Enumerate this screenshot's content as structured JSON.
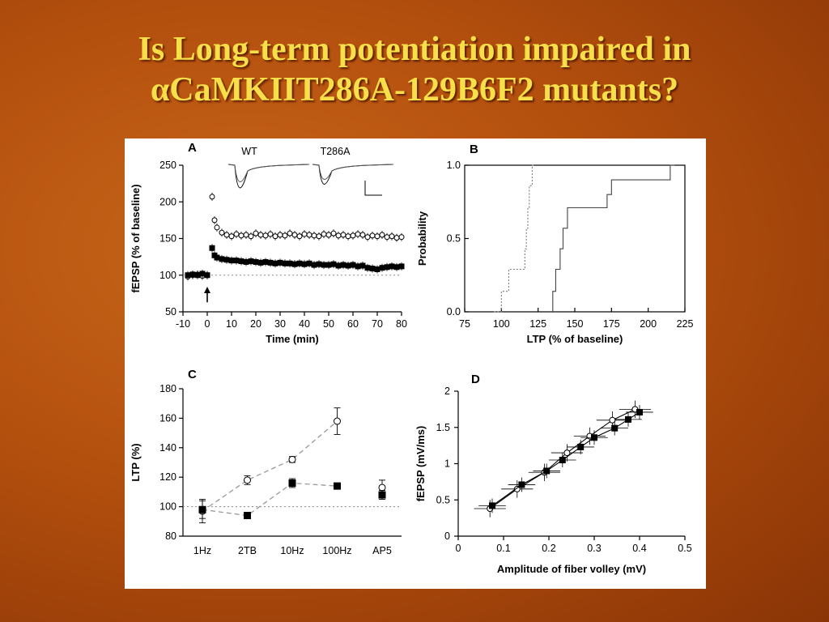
{
  "slide": {
    "title_line1": "Is Long-term potentiation impaired in",
    "title_line2": "αCaMKIIT286A-129B6F2 mutants?"
  },
  "colors": {
    "title": "#f7df4a",
    "background": "#b4500e"
  },
  "chart_data": [
    {
      "panel": "A",
      "type": "scatter",
      "xlabel": "Time (min)",
      "ylabel": "fEPSP (% of baseline)",
      "xlim": [
        -10,
        80
      ],
      "ylim": [
        50,
        250
      ],
      "xticks": [
        "-10",
        "0",
        "10",
        "20",
        "30",
        "40",
        "50",
        "60",
        "70",
        "80"
      ],
      "yticks": [
        "50",
        "100",
        "150",
        "200",
        "250"
      ],
      "reference_line_y": 100,
      "inset_labels": [
        "WT",
        "T286A"
      ],
      "series": [
        {
          "marker": "open circle",
          "x": [
            -8,
            -6,
            -4,
            -2,
            0,
            2,
            3,
            4,
            6,
            8,
            10,
            12,
            14,
            16,
            18,
            20,
            22,
            24,
            26,
            28,
            30,
            32,
            34,
            36,
            38,
            40,
            42,
            44,
            46,
            48,
            50,
            52,
            54,
            56,
            58,
            60,
            62,
            64,
            66,
            68,
            70,
            72,
            74,
            76,
            78,
            80
          ],
          "y": [
            98,
            100,
            101,
            99,
            100,
            207,
            175,
            165,
            158,
            155,
            153,
            156,
            154,
            155,
            153,
            157,
            155,
            154,
            156,
            153,
            155,
            154,
            157,
            155,
            153,
            156,
            155,
            154,
            153,
            156,
            155,
            157,
            154,
            155,
            153,
            154,
            156,
            155,
            152,
            154,
            153,
            155,
            152,
            153,
            151,
            152
          ]
        },
        {
          "marker": "filled square",
          "x": [
            -8,
            -6,
            -4,
            -2,
            0,
            2,
            3,
            4,
            6,
            8,
            10,
            12,
            14,
            16,
            18,
            20,
            22,
            24,
            26,
            28,
            30,
            32,
            34,
            36,
            38,
            40,
            42,
            44,
            46,
            48,
            50,
            52,
            54,
            56,
            58,
            60,
            62,
            64,
            66,
            68,
            70,
            72,
            74,
            76,
            78,
            80
          ],
          "y": [
            100,
            101,
            100,
            102,
            100,
            137,
            127,
            124,
            122,
            121,
            120,
            120,
            119,
            118,
            119,
            118,
            117,
            118,
            117,
            116,
            117,
            116,
            116,
            115,
            116,
            115,
            116,
            114,
            115,
            114,
            114,
            115,
            113,
            114,
            113,
            114,
            112,
            113,
            110,
            109,
            108,
            110,
            111,
            112,
            111,
            112
          ]
        }
      ]
    },
    {
      "panel": "B",
      "type": "line",
      "xlabel": "LTP (% of baseline)",
      "ylabel": "Probability",
      "xlim": [
        75,
        225
      ],
      "ylim": [
        0,
        1
      ],
      "xticks": [
        "75",
        "100",
        "125",
        "150",
        "175",
        "200",
        "225"
      ],
      "yticks": [
        "0.0",
        "0.5",
        "1.0"
      ],
      "series": [
        {
          "style": "dotted",
          "x": [
            95,
            100,
            100,
            105,
            105,
            112,
            112,
            116,
            116,
            117,
            117,
            118,
            118,
            119,
            119,
            121,
            121,
            122
          ],
          "y": [
            0,
            0,
            0.14,
            0.14,
            0.29,
            0.29,
            0.29,
            0.29,
            0.43,
            0.43,
            0.57,
            0.57,
            0.71,
            0.71,
            0.86,
            0.86,
            1,
            1
          ]
        },
        {
          "style": "solid",
          "x": [
            135,
            135,
            137,
            137,
            140,
            140,
            142,
            142,
            145,
            145,
            172,
            172,
            175,
            175,
            215,
            215,
            218
          ],
          "y": [
            0,
            0.14,
            0.14,
            0.29,
            0.29,
            0.43,
            0.43,
            0.57,
            0.57,
            0.71,
            0.71,
            0.8,
            0.8,
            0.9,
            0.9,
            1,
            1
          ]
        }
      ]
    },
    {
      "panel": "C",
      "type": "line",
      "xlabel": "",
      "ylabel": "LTP (%)",
      "ylim": [
        80,
        180
      ],
      "categories": [
        "1Hz",
        "2TB",
        "10Hz",
        "100Hz",
        "AP5"
      ],
      "yticks": [
        "80",
        "100",
        "120",
        "140",
        "160",
        "180"
      ],
      "reference_line_y": 100,
      "series": [
        {
          "marker": "open circle",
          "values": [
            97,
            118,
            132,
            158,
            113
          ],
          "errors": [
            8,
            3,
            2,
            9,
            5
          ]
        },
        {
          "marker": "filled square",
          "values": [
            98,
            94,
            116,
            114,
            108
          ],
          "errors": [
            6,
            2,
            3,
            2,
            3
          ]
        }
      ]
    },
    {
      "panel": "D",
      "type": "scatter",
      "xlabel": "Amplitude of fiber volley (mV)",
      "ylabel": "fEPSP (mV/ms)",
      "xlim": [
        0,
        0.5
      ],
      "ylim": [
        0,
        2
      ],
      "xticks": [
        "0",
        "0.1",
        "0.2",
        "0.3",
        "0.4",
        "0.5"
      ],
      "yticks": [
        "0",
        "0.5",
        "1",
        "1.5",
        "2"
      ],
      "series": [
        {
          "marker": "open circle",
          "x": [
            0.07,
            0.13,
            0.19,
            0.24,
            0.29,
            0.34,
            0.39
          ],
          "y": [
            0.38,
            0.65,
            0.88,
            1.15,
            1.38,
            1.6,
            1.75
          ],
          "xerr": 0.035,
          "yerr": 0.12
        },
        {
          "marker": "filled square",
          "x": [
            0.075,
            0.14,
            0.195,
            0.23,
            0.27,
            0.3,
            0.345,
            0.375,
            0.4
          ],
          "y": [
            0.42,
            0.71,
            0.9,
            1.05,
            1.23,
            1.36,
            1.49,
            1.61,
            1.71
          ],
          "xerr": 0.03,
          "yerr": 0.1
        }
      ]
    }
  ]
}
